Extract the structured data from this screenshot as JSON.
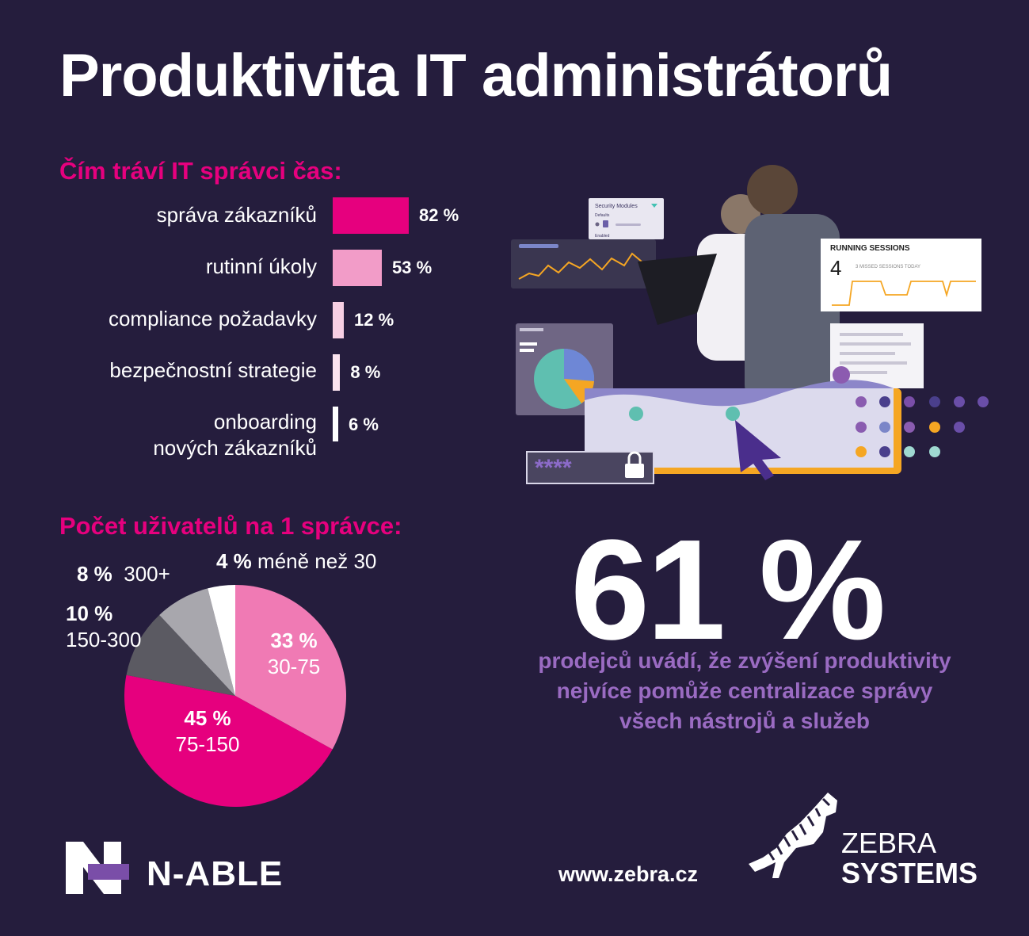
{
  "title": "Produktivita IT administrátorů",
  "chart_data": [
    {
      "type": "bar",
      "title": "Čím tráví IT správci čas:",
      "categories": [
        "správa zákazníků",
        "rutinní úkoly",
        "compliance požadavky",
        "bezpečnostní strategie",
        "onboarding nových zákazníků"
      ],
      "values": [
        82,
        53,
        12,
        8,
        6
      ],
      "value_labels": [
        "82 %",
        "53 %",
        "12 %",
        "8 %",
        "6 %"
      ],
      "colors": [
        "#e6007e",
        "#f29cc8",
        "#f7cfe4",
        "#fbe3ef",
        "#ffffff"
      ]
    },
    {
      "type": "pie",
      "title": "Počet uživatelů na 1 správce:",
      "categories": [
        "30-75",
        "75-150",
        "150-300",
        "300+",
        "méně než 30"
      ],
      "values": [
        33,
        45,
        10,
        8,
        4
      ],
      "value_labels": [
        "33 %",
        "45 %",
        "10 %",
        "8 %",
        "4 %"
      ],
      "colors": [
        "#f07ab4",
        "#e6007e",
        "#5b5a62",
        "#a8a7ad",
        "#ffffff"
      ]
    }
  ],
  "highlight": {
    "value": "61 %",
    "caption_lines": [
      "prodejců uvádí, že zvýšení produktivity",
      "nejvíce pomůže centralizace správy",
      "všech nástrojů a služeb"
    ]
  },
  "illustration": {
    "security_modules": "Security Modules",
    "defaults": "Defaults",
    "enabled": "Enabled",
    "running_sessions": "RUNNING SESSIONS",
    "sessions_count": "4",
    "missed_sessions": "3 MISSED SESSIONS TODAY",
    "password_mask": "****"
  },
  "footer": {
    "nable": "N-ABLE",
    "url": "www.zebra.cz",
    "zebra": "ZEBRA",
    "systems": "SYSTEMS"
  },
  "colors": {
    "background": "#251d3d",
    "accent": "#e6007e",
    "caption": "#9a6bc2"
  }
}
